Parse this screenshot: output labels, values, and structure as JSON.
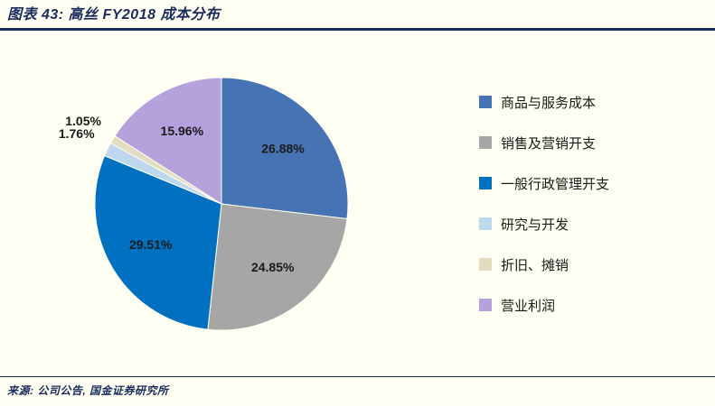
{
  "header": {
    "title": "图表 43: 高丝 FY2018 成本分布"
  },
  "chart_data": {
    "type": "pie",
    "title": "高丝 FY2018 成本分布",
    "labels": [
      "商品与服务成本",
      "销售及营销开支",
      "一般行政管理开支",
      "研究与开发",
      "折旧、摊销",
      "营业利润"
    ],
    "values": [
      26.88,
      24.85,
      29.51,
      1.76,
      1.05,
      15.96
    ],
    "value_labels": [
      "26.88%",
      "24.85%",
      "29.51%",
      "1.76%",
      "1.05%",
      "15.96%"
    ],
    "colors": [
      "#4673B3",
      "#A6A6A6",
      "#0070C0",
      "#BDD7EE",
      "#E3DCC0",
      "#B5A2DC"
    ],
    "start_angle_deg": -90,
    "direction": "clockwise",
    "legend_position": "right",
    "units": "%"
  },
  "footer": {
    "source": "来源: 公司公告, 国金证券研究所"
  },
  "theme": {
    "background": "#FFFEF2",
    "accent_navy": "#1A2B5C",
    "label_color": "#1A1A1A"
  }
}
